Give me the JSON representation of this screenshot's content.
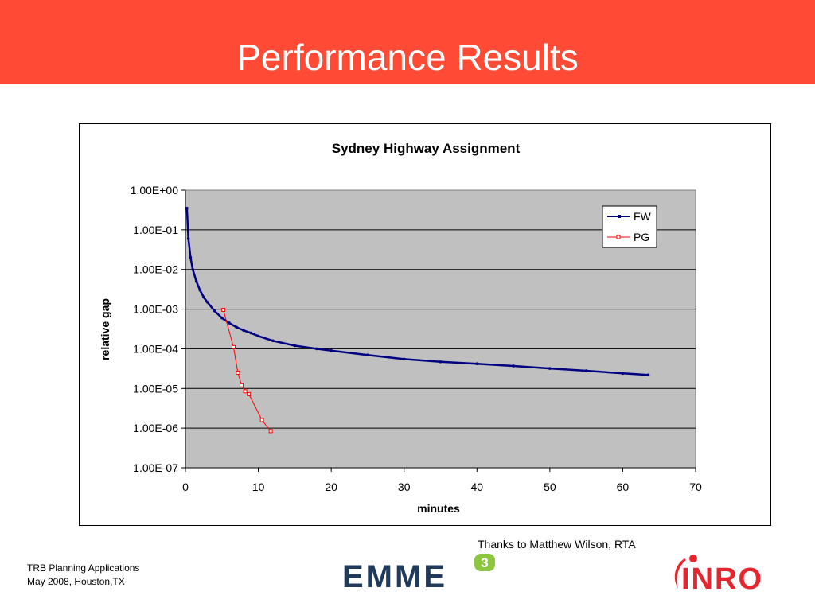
{
  "slide": {
    "title": "Performance Results",
    "thanks": "Thanks to Matthew Wilson, RTA",
    "footer_line1": "TRB Planning Applications",
    "footer_line2": "May 2008, Houston,TX",
    "emme_logo_text": "EMME",
    "emme_logo_superscript": "3",
    "inro_logo_text": "INRO"
  },
  "colors": {
    "header": "#ff4a36",
    "plot_area": "#c0c0c0",
    "fw": "#000080",
    "pg": "#ff0000",
    "emme_text": "#1f3a5a",
    "emme_accent": "#8dc63f",
    "inro": "#e6262e"
  },
  "chart_data": {
    "type": "line",
    "title": "Sydney Highway Assignment",
    "xlabel": "minutes",
    "ylabel": "relative gap",
    "xlim": [
      0,
      70
    ],
    "ylim": [
      1e-07,
      1
    ],
    "yscale": "log",
    "grid": "horizontal",
    "legend": "top-right",
    "x_ticks": [
      "0",
      "10",
      "20",
      "30",
      "40",
      "50",
      "60",
      "70"
    ],
    "y_ticks": [
      "1.00E+00",
      "1.00E-01",
      "1.00E-02",
      "1.00E-03",
      "1.00E-04",
      "1.00E-05",
      "1.00E-06",
      "1.00E-07"
    ],
    "series": [
      {
        "name": "FW",
        "marker": "small-dot",
        "x": [
          0.2,
          0.4,
          0.7,
          1.0,
          1.5,
          2.0,
          2.5,
          3.0,
          4.0,
          5.0,
          6.0,
          7.0,
          8.0,
          9.0,
          10.0,
          12.0,
          15.0,
          18.0,
          20.0,
          25.0,
          30.0,
          35.0,
          40.0,
          45.0,
          50.0,
          55.0,
          60.0,
          63.5
        ],
        "y": [
          0.35,
          0.06,
          0.02,
          0.01,
          0.005,
          0.003,
          0.002,
          0.0015,
          0.0009,
          0.0006,
          0.00045,
          0.00035,
          0.00029,
          0.00025,
          0.00021,
          0.00016,
          0.00012,
          0.0001,
          9e-05,
          7e-05,
          5.5e-05,
          4.7e-05,
          4.2e-05,
          3.7e-05,
          3.2e-05,
          2.8e-05,
          2.4e-05,
          2.2e-05
        ]
      },
      {
        "name": "PG",
        "marker": "open-square",
        "x": [
          5.2,
          6.6,
          7.2,
          7.7,
          8.2,
          8.7,
          10.5,
          11.7
        ],
        "y": [
          0.00096,
          0.00011,
          2.5e-05,
          1.2e-05,
          8.5e-06,
          7.2e-06,
          1.6e-06,
          8.4e-07
        ]
      }
    ]
  }
}
